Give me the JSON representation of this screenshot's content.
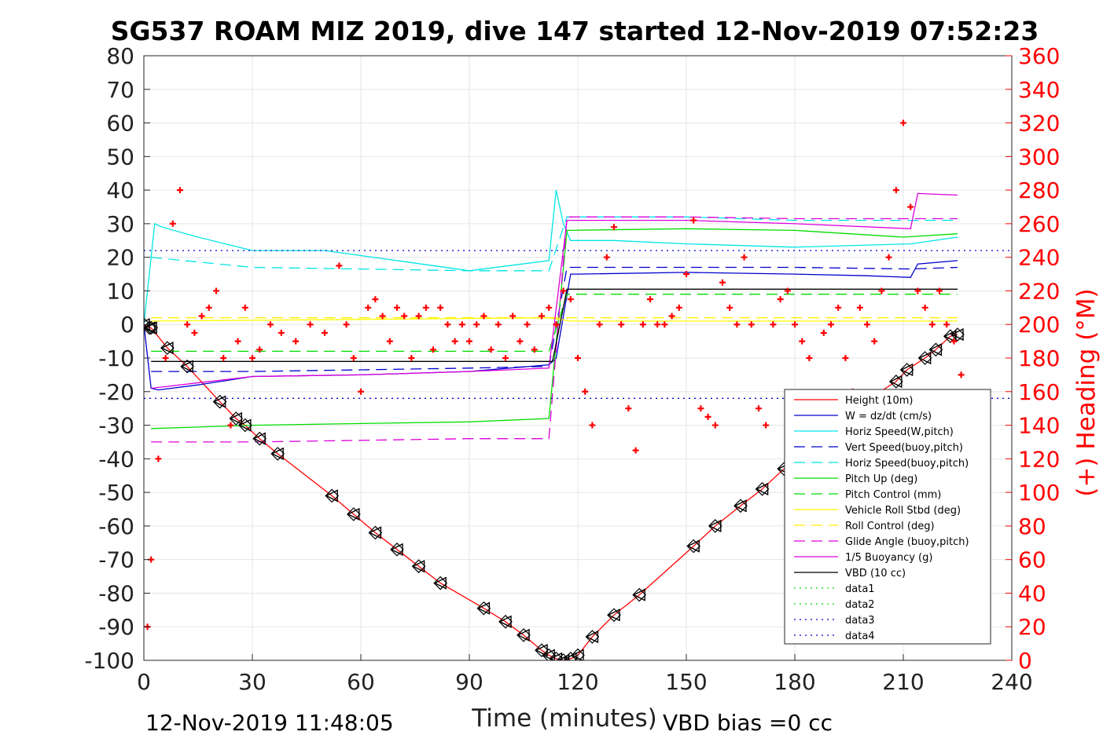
{
  "chart_data": {
    "type": "line",
    "title": "SG537 ROAM MIZ 2019, dive 147 started 12-Nov-2019 07:52:23",
    "xlabel": "Time (minutes)",
    "ylabel": "",
    "ylabel_right": "(+) Heading (°M)",
    "xlim": [
      0,
      240
    ],
    "ylim": [
      -100,
      80
    ],
    "ylim_right": [
      0,
      360
    ],
    "xticks": [
      "0",
      "30",
      "60",
      "90",
      "120",
      "150",
      "180",
      "210",
      "240"
    ],
    "yticks": [
      "80",
      "70",
      "60",
      "50",
      "40",
      "30",
      "20",
      "10",
      "0",
      "-10",
      "-20",
      "-30",
      "-40",
      "-50",
      "-60",
      "-70",
      "-80",
      "-90",
      "-100"
    ],
    "yticks_right": [
      "360",
      "340",
      "320",
      "300",
      "280",
      "260",
      "240",
      "220",
      "200",
      "180",
      "160",
      "140",
      "120",
      "100",
      "80",
      "60",
      "40",
      "20",
      "0"
    ],
    "grid": true,
    "legend_position": "bottom-right",
    "footer_left": "12-Nov-2019 11:48:05",
    "footer_right": "VBD bias =0 cc",
    "colors": {
      "height": "#ff0000",
      "w": "#0000cc",
      "horiz_w": "#00e5e5",
      "vert_buoy": "#0000cc",
      "horiz_buoy": "#00e5e5",
      "pitch_up": "#00dd00",
      "pitch_ctrl": "#00dd00",
      "roll": "#ffff00",
      "roll_ctrl": "#ffee00",
      "glide": "#dd00dd",
      "buoy": "#dd00dd",
      "vbd": "#000000",
      "heading": "#ff0000",
      "data1": "#00dd00",
      "data2": "#00dd00",
      "data3": "#0000cc",
      "data4": "#0000cc"
    },
    "series": [
      {
        "name": "Height (10m)",
        "key": "height",
        "style": "solid",
        "x": [
          0,
          1.5,
          2,
          6.5,
          12,
          21,
          25.5,
          28,
          32,
          37,
          52,
          58,
          64,
          70,
          76,
          82,
          94,
          100,
          105,
          110,
          112,
          114,
          116,
          118,
          120,
          124,
          130,
          137,
          152,
          158,
          165,
          171,
          177,
          183,
          189,
          200,
          208,
          211,
          216,
          219,
          223,
          225
        ],
        "y": [
          0,
          -1,
          -1,
          -7,
          -12.5,
          -23,
          -28,
          -30,
          -34,
          -38.5,
          -51,
          -56.5,
          -62,
          -67,
          -72,
          -77,
          -84.5,
          -88.5,
          -92.5,
          -97,
          -98.5,
          -99.5,
          -100,
          -99.5,
          -98.5,
          -93,
          -86.5,
          -80.5,
          -66,
          -60,
          -54,
          -49,
          -43,
          -37,
          -31,
          -22.5,
          -17,
          -13.5,
          -10,
          -7.5,
          -3.5,
          -3
        ]
      },
      {
        "name": "W = dz/dt (cm/s)",
        "key": "w",
        "style": "solid",
        "x": [
          0,
          2,
          4,
          15,
          30,
          60,
          90,
          112,
          114,
          118,
          120,
          150,
          180,
          200,
          212,
          214,
          225
        ],
        "y": [
          0,
          -19,
          -19.5,
          -18,
          -15.5,
          -15,
          -14,
          -12,
          -10,
          15,
          15,
          15.5,
          15,
          14.5,
          14,
          18,
          19
        ]
      },
      {
        "name": "Horiz Speed(W,pitch)",
        "key": "horiz_w",
        "style": "solid",
        "x": [
          0,
          3,
          5,
          15,
          30,
          50,
          70,
          90,
          112,
          114,
          116,
          118,
          130,
          150,
          180,
          212,
          225
        ],
        "y": [
          0,
          30,
          29,
          26,
          22,
          22,
          19,
          16,
          19,
          40,
          30,
          25,
          25,
          24,
          23,
          24,
          26
        ]
      },
      {
        "name": "Vert Speed(buoy,pitch)",
        "key": "vert_buoy",
        "style": "dash",
        "x": [
          2,
          30,
          60,
          90,
          112,
          117,
          150,
          180,
          212,
          225
        ],
        "y": [
          -14,
          -14,
          -13.5,
          -13,
          -12.5,
          17,
          17,
          17,
          16.5,
          17
        ]
      },
      {
        "name": "Horiz Speed(buoy,pitch)",
        "key": "horiz_buoy",
        "style": "dash",
        "x": [
          2,
          30,
          60,
          90,
          112,
          117,
          150,
          180,
          212,
          225
        ],
        "y": [
          20,
          17,
          16.5,
          16,
          16,
          32,
          32,
          31,
          31,
          31
        ]
      },
      {
        "name": "Pitch Up (deg)",
        "key": "pitch_up",
        "style": "solid",
        "x": [
          2,
          30,
          60,
          90,
          112,
          117,
          150,
          180,
          210,
          225
        ],
        "y": [
          -31,
          -30,
          -29.5,
          -29,
          -28,
          28,
          28.5,
          28,
          26,
          27
        ]
      },
      {
        "name": "Pitch Control (mm)",
        "key": "pitch_ctrl",
        "style": "dash",
        "x": [
          2,
          112,
          117,
          225
        ],
        "y": [
          -8,
          -8,
          9,
          9
        ]
      },
      {
        "name": "Vehicle Roll Stbd (deg)",
        "key": "roll",
        "style": "solid",
        "x": [
          2,
          60,
          112,
          118,
          225
        ],
        "y": [
          1,
          1.5,
          2,
          1,
          1
        ]
      },
      {
        "name": "Roll Control (deg)",
        "key": "roll_ctrl",
        "style": "dash",
        "x": [
          2,
          112,
          118,
          225
        ],
        "y": [
          2,
          2,
          2,
          2
        ]
      },
      {
        "name": "Glide Angle (buoy,pitch)",
        "key": "glide",
        "style": "dash",
        "x": [
          2,
          30,
          60,
          90,
          112,
          117,
          150,
          180,
          212,
          225
        ],
        "y": [
          -35,
          -35,
          -34.5,
          -34,
          -34,
          32,
          32,
          31.5,
          31.5,
          31.5
        ]
      },
      {
        "name": "1/5 Buoyancy (g)",
        "key": "buoy",
        "style": "solid",
        "x": [
          2,
          30,
          60,
          90,
          112,
          117,
          150,
          180,
          212,
          214,
          225
        ],
        "y": [
          -19,
          -15.5,
          -15,
          -14,
          -13,
          31,
          31,
          30,
          28.5,
          39,
          38.5
        ]
      },
      {
        "name": "VBD (10 cc)",
        "key": "vbd",
        "style": "solid",
        "x": [
          2,
          3,
          113,
          117,
          225
        ],
        "y": [
          -11,
          -11,
          -11,
          10.5,
          10.5
        ]
      },
      {
        "name": "data1",
        "key": "data1",
        "style": "dot",
        "x": [],
        "y": []
      },
      {
        "name": "data2",
        "key": "data2",
        "style": "dot",
        "x": [],
        "y": []
      },
      {
        "name": "data3",
        "key": "data3",
        "style": "dot",
        "x": [
          0,
          240
        ],
        "y": [
          22,
          22
        ]
      },
      {
        "name": "data4",
        "key": "data4",
        "style": "dot",
        "x": [
          0,
          240
        ],
        "y": [
          -22,
          -22
        ]
      }
    ],
    "heading": {
      "axis": "right",
      "marker": "+",
      "x": [
        1,
        2,
        4,
        6,
        8,
        10,
        12,
        14,
        16,
        18,
        20,
        22,
        24,
        26,
        28,
        30,
        32,
        35,
        38,
        42,
        46,
        50,
        54,
        56,
        58,
        60,
        62,
        64,
        66,
        68,
        70,
        72,
        74,
        76,
        78,
        80,
        82,
        84,
        86,
        88,
        90,
        92,
        94,
        96,
        98,
        100,
        102,
        104,
        106,
        108,
        110,
        112,
        114,
        116,
        118,
        120,
        122,
        124,
        126,
        128,
        130,
        132,
        134,
        136,
        138,
        140,
        142,
        144,
        146,
        148,
        150,
        152,
        154,
        156,
        158,
        160,
        162,
        164,
        166,
        168,
        170,
        172,
        174,
        176,
        178,
        180,
        182,
        184,
        186,
        188,
        190,
        192,
        194,
        196,
        198,
        200,
        202,
        204,
        206,
        208,
        210,
        212,
        214,
        216,
        218,
        220,
        222,
        224,
        226
      ],
      "y": [
        20,
        60,
        120,
        180,
        260,
        280,
        200,
        195,
        205,
        210,
        220,
        180,
        140,
        190,
        210,
        180,
        185,
        200,
        195,
        190,
        200,
        195,
        235,
        200,
        180,
        160,
        210,
        215,
        205,
        190,
        210,
        205,
        180,
        205,
        210,
        185,
        210,
        200,
        190,
        200,
        190,
        200,
        205,
        185,
        200,
        180,
        205,
        190,
        200,
        185,
        205,
        210,
        200,
        220,
        215,
        180,
        160,
        140,
        200,
        240,
        258,
        200,
        150,
        125,
        200,
        215,
        200,
        200,
        205,
        210,
        230,
        262,
        150,
        145,
        140,
        225,
        210,
        200,
        240,
        200,
        150,
        140,
        200,
        215,
        220,
        200,
        190,
        180,
        150,
        195,
        200,
        210,
        180,
        160,
        210,
        200,
        190,
        220,
        240,
        280,
        320,
        270,
        220,
        210,
        200,
        220,
        200,
        190,
        170
      ]
    }
  }
}
